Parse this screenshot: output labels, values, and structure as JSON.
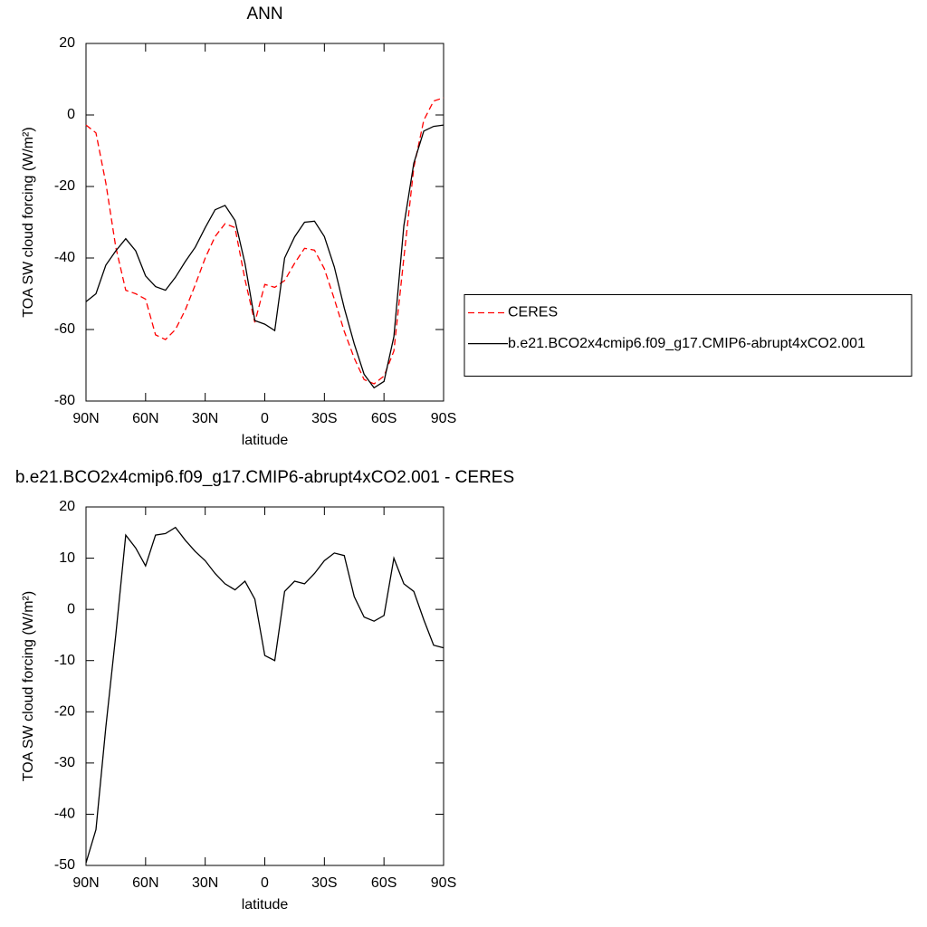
{
  "chart_data": [
    {
      "type": "line",
      "title": "ANN",
      "xlabel": "latitude",
      "ylabel": "TOA SW cloud forcing (W/m²)",
      "x": [
        90,
        85,
        80,
        75,
        70,
        65,
        60,
        55,
        50,
        45,
        40,
        35,
        30,
        25,
        20,
        15,
        10,
        5,
        0,
        -5,
        -10,
        -15,
        -20,
        -25,
        -30,
        -35,
        -40,
        -45,
        -50,
        -55,
        -60,
        -65,
        -70,
        -75,
        -80,
        -85,
        -90
      ],
      "xlim": [
        90,
        -90
      ],
      "xticks": [
        {
          "value": 90,
          "label": "90N"
        },
        {
          "value": 60,
          "label": "60N"
        },
        {
          "value": 30,
          "label": "30N"
        },
        0,
        {
          "value": -30,
          "label": "30S"
        },
        {
          "value": -60,
          "label": "60S"
        },
        {
          "value": -90,
          "label": "90S"
        }
      ],
      "ylim": [
        -80,
        20
      ],
      "yticks": [
        -80,
        -60,
        -40,
        -20,
        0,
        20
      ],
      "legend": "right",
      "series": [
        {
          "name": "CERES",
          "color": "#ff0000",
          "dash": "dashed",
          "values": [
            -2.8,
            -5,
            -19,
            -37,
            -49,
            -50,
            -51.5,
            -61.5,
            -62.8,
            -60,
            -54.5,
            -47.5,
            -40,
            -34,
            -30.4,
            -31.5,
            -46,
            -58,
            -47.4,
            -48.2,
            -46.3,
            -41.5,
            -37.3,
            -37.8,
            -43,
            -51.5,
            -60.5,
            -68,
            -74,
            -75.2,
            -73,
            -66,
            -40,
            -14.7,
            -1.5,
            3.9,
            4.8
          ]
        },
        {
          "name": "b.e21.BCO2x4cmip6.f09_g17.CMIP6-abrupt4xCO2.001",
          "color": "#000000",
          "dash": "solid",
          "values": [
            -52.2,
            -50,
            -42,
            -38,
            -34.6,
            -38,
            -45,
            -48,
            -49,
            -45.4,
            -41,
            -37,
            -31.5,
            -26.5,
            -25.3,
            -29.5,
            -41.5,
            -57.5,
            -58.5,
            -60.3,
            -40,
            -34.1,
            -30,
            -29.7,
            -34,
            -42.5,
            -54,
            -64,
            -72.5,
            -76.3,
            -74.5,
            -62,
            -31,
            -13.5,
            -4.5,
            -3.2,
            -2.8
          ]
        }
      ]
    },
    {
      "type": "line",
      "title": "b.e21.BCO2x4cmip6.f09_g17.CMIP6-abrupt4xCO2.001 - CERES",
      "xlabel": "latitude",
      "ylabel": "TOA SW cloud forcing (W/m²)",
      "x": [
        90,
        85,
        80,
        75,
        70,
        65,
        60,
        55,
        50,
        45,
        40,
        35,
        30,
        25,
        20,
        15,
        10,
        5,
        0,
        -5,
        -10,
        -15,
        -20,
        -25,
        -30,
        -35,
        -40,
        -45,
        -50,
        -55,
        -60,
        -65,
        -70,
        -75,
        -80,
        -85,
        -90
      ],
      "xlim": [
        90,
        -90
      ],
      "xticks": [
        {
          "value": 90,
          "label": "90N"
        },
        {
          "value": 60,
          "label": "60N"
        },
        {
          "value": 30,
          "label": "30N"
        },
        0,
        {
          "value": -30,
          "label": "30S"
        },
        {
          "value": -60,
          "label": "60S"
        },
        {
          "value": -90,
          "label": "90S"
        }
      ],
      "ylim": [
        -50,
        20
      ],
      "yticks": [
        -50,
        -40,
        -30,
        -20,
        -10,
        0,
        10,
        20
      ],
      "series": [
        {
          "color": "#000000",
          "dash": "solid",
          "values": [
            -49.5,
            -43,
            -23,
            -5,
            14.5,
            12,
            8.5,
            14.5,
            14.8,
            16,
            13.5,
            11.3,
            9.5,
            7,
            5,
            3.8,
            5.5,
            2,
            -9,
            -10,
            3.5,
            5.5,
            5,
            7,
            9.5,
            11,
            10.5,
            2.5,
            -1.5,
            -2.3,
            -1.2,
            10,
            5,
            3.5,
            -2,
            -7,
            -7.5
          ]
        }
      ]
    }
  ]
}
